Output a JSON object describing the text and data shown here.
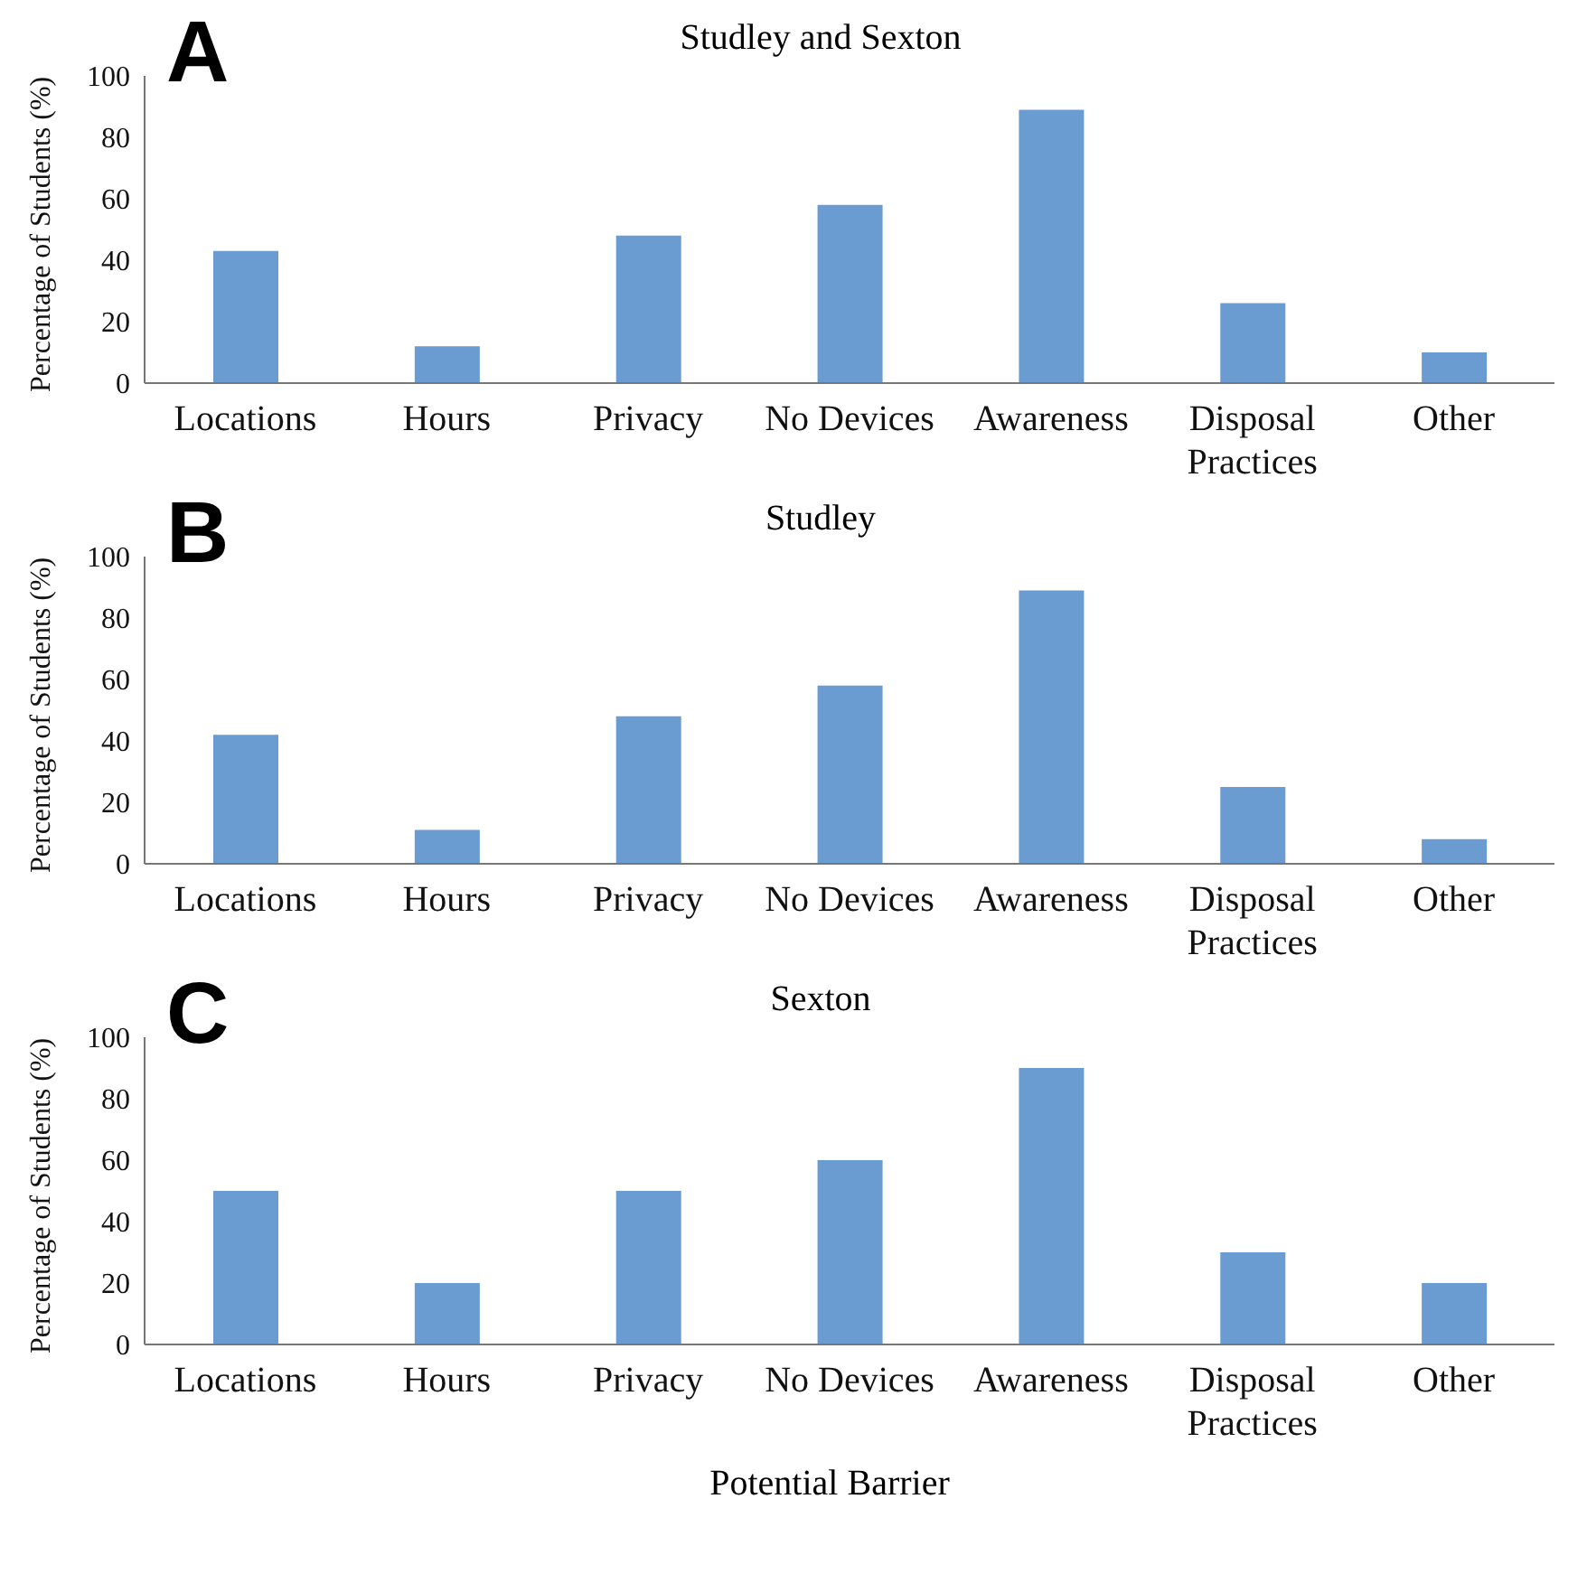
{
  "chart_data": [
    {
      "type": "bar",
      "title": "Studley and Sexton",
      "annotations": [
        "A"
      ],
      "ylabel": "Percentage of Students (%)",
      "categories": [
        "Locations",
        "Hours",
        "Privacy",
        "No Devices",
        "Awareness",
        "Disposal Practices",
        "Other"
      ],
      "values": [
        43,
        12,
        48,
        58,
        89,
        26,
        10
      ],
      "color": "#6a9bd1",
      "ylim": [
        0,
        100
      ],
      "yticks": [
        0,
        20,
        40,
        60,
        80,
        100
      ],
      "grid": false
    },
    {
      "type": "bar",
      "title": "Studley",
      "annotations": [
        "B"
      ],
      "ylabel": "Percentage of Students (%)",
      "categories": [
        "Locations",
        "Hours",
        "Privacy",
        "No Devices",
        "Awareness",
        "Disposal Practices",
        "Other"
      ],
      "values": [
        42,
        11,
        48,
        58,
        89,
        25,
        8
      ],
      "color": "#6a9bd1",
      "ylim": [
        0,
        100
      ],
      "yticks": [
        0,
        20,
        40,
        60,
        80,
        100
      ],
      "grid": false
    },
    {
      "type": "bar",
      "title": "Sexton",
      "annotations": [
        "C"
      ],
      "ylabel": "Percentage of Students (%)",
      "xlabel": "Potential Barrier",
      "categories": [
        "Locations",
        "Hours",
        "Privacy",
        "No Devices",
        "Awareness",
        "Disposal Practices",
        "Other"
      ],
      "values": [
        50,
        20,
        50,
        60,
        90,
        30,
        20
      ],
      "color": "#6a9bd1",
      "ylim": [
        0,
        100
      ],
      "yticks": [
        0,
        20,
        40,
        60,
        80,
        100
      ],
      "grid": false
    }
  ]
}
